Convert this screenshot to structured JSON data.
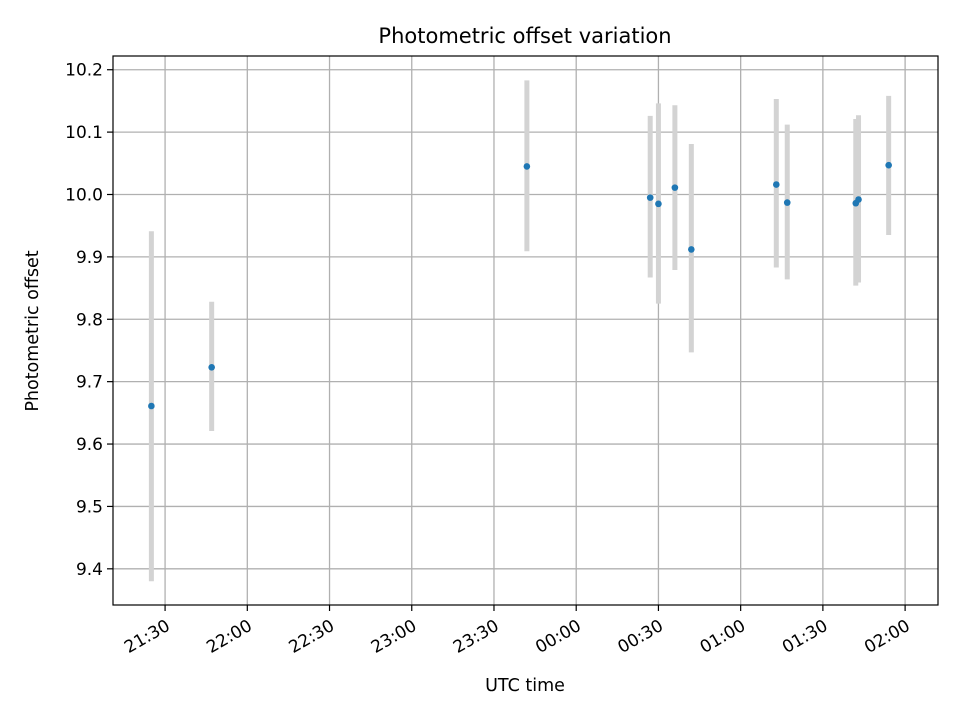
{
  "chart_data": {
    "type": "scatter",
    "title": "Photometric offset variation",
    "xlabel": "UTC time",
    "ylabel": "Photometric offset",
    "x_tick_labels": [
      "21:30",
      "22:00",
      "22:30",
      "23:00",
      "23:30",
      "00:00",
      "00:30",
      "01:00",
      "01:30",
      "02:00"
    ],
    "y_tick_labels": [
      "9.4",
      "9.5",
      "9.6",
      "9.7",
      "9.8",
      "9.9",
      "10.0",
      "10.1",
      "10.2"
    ],
    "ylim": [
      9.342,
      10.222
    ],
    "xlim": [
      "21:11",
      "02:12"
    ],
    "grid": true,
    "points": [
      {
        "x": "21:25",
        "y": 9.661,
        "err_low": 9.38,
        "err_high": 9.941
      },
      {
        "x": "21:47",
        "y": 9.723,
        "err_low": 9.621,
        "err_high": 9.828
      },
      {
        "x": "23:42",
        "y": 10.045,
        "err_low": 9.909,
        "err_high": 10.183
      },
      {
        "x": "00:27",
        "y": 9.995,
        "err_low": 9.867,
        "err_high": 10.126
      },
      {
        "x": "00:30",
        "y": 9.985,
        "err_low": 9.825,
        "err_high": 10.146
      },
      {
        "x": "00:36",
        "y": 10.011,
        "err_low": 9.879,
        "err_high": 10.143
      },
      {
        "x": "00:42",
        "y": 9.912,
        "err_low": 9.747,
        "err_high": 10.081
      },
      {
        "x": "01:13",
        "y": 10.016,
        "err_low": 9.883,
        "err_high": 10.153
      },
      {
        "x": "01:17",
        "y": 9.987,
        "err_low": 9.864,
        "err_high": 10.112
      },
      {
        "x": "01:42",
        "y": 9.986,
        "err_low": 9.854,
        "err_high": 10.121
      },
      {
        "x": "01:43",
        "y": 9.992,
        "err_low": 9.859,
        "err_high": 10.127
      },
      {
        "x": "01:54",
        "y": 10.047,
        "err_low": 9.935,
        "err_high": 10.158
      }
    ],
    "point_color": "#1f77b4",
    "errorbar_color": "#d3d3d3",
    "grid_color": "#b0b0b0"
  }
}
